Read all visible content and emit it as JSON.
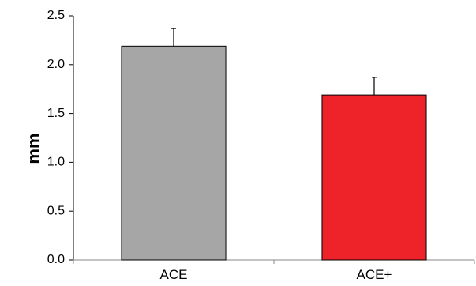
{
  "chart_data": {
    "type": "bar",
    "categories": [
      "ACE",
      "ACE+"
    ],
    "values": [
      2.19,
      1.69
    ],
    "errors": [
      0.18,
      0.18
    ],
    "colors": [
      "#a6a6a6",
      "#ee2329"
    ],
    "title": "",
    "xlabel": "",
    "ylabel": "mm",
    "ylim": [
      0,
      2.5
    ],
    "yticks": [
      "0.0",
      "0.5",
      "1.0",
      "1.5",
      "2.0",
      "2.5"
    ],
    "grid": false
  }
}
